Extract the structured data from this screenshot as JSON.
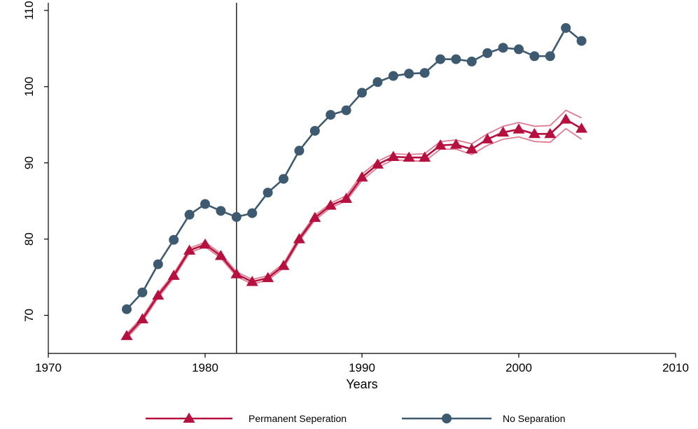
{
  "chart_data": {
    "type": "line",
    "title": "",
    "xlabel": "Years",
    "ylabel": "",
    "xlim": [
      1970,
      2010
    ],
    "ylim": [
      65,
      111
    ],
    "x_ticks": [
      1970,
      1980,
      1990,
      2000,
      2010
    ],
    "y_ticks": [
      70,
      80,
      90,
      100,
      110
    ],
    "grid": false,
    "legend_position": "bottom",
    "vertical_line_x": 1982,
    "x": [
      1975,
      1976,
      1977,
      1978,
      1979,
      1980,
      1981,
      1982,
      1983,
      1984,
      1985,
      1986,
      1987,
      1988,
      1989,
      1990,
      1991,
      1992,
      1993,
      1994,
      1995,
      1996,
      1997,
      1998,
      1999,
      2000,
      2001,
      2002,
      2003,
      2004
    ],
    "series": [
      {
        "name": "Permanent Seperation",
        "marker": "triangle",
        "color": "#b5103f",
        "band_color": "#e07a90",
        "values": [
          67.3,
          69.5,
          72.6,
          75.2,
          78.5,
          79.3,
          77.8,
          75.4,
          74.4,
          74.9,
          76.5,
          80.0,
          82.8,
          84.4,
          85.3,
          88.1,
          89.8,
          90.8,
          90.7,
          90.7,
          92.3,
          92.4,
          91.8,
          93.1,
          94.0,
          94.4,
          93.8,
          93.8,
          95.7,
          94.5
        ],
        "lower": [
          67.0,
          69.2,
          72.3,
          74.9,
          78.2,
          79.0,
          77.5,
          75.1,
          74.1,
          74.6,
          76.2,
          79.7,
          82.5,
          84.1,
          85.0,
          87.7,
          89.4,
          90.4,
          90.3,
          90.2,
          91.8,
          91.8,
          91.1,
          92.3,
          93.1,
          93.4,
          92.8,
          92.7,
          94.5,
          93.1
        ],
        "upper": [
          67.6,
          69.8,
          72.9,
          75.5,
          78.8,
          79.6,
          78.1,
          75.7,
          74.7,
          75.2,
          76.8,
          80.3,
          83.1,
          84.7,
          85.7,
          88.5,
          90.2,
          91.2,
          91.1,
          91.2,
          92.8,
          93.0,
          92.5,
          93.8,
          94.8,
          95.3,
          94.8,
          94.9,
          96.9,
          95.9
        ]
      },
      {
        "name": "No Separation",
        "marker": "circle",
        "color": "#3e5a70",
        "values": [
          70.8,
          73.0,
          76.7,
          79.9,
          83.2,
          84.6,
          83.7,
          82.9,
          83.4,
          86.1,
          87.9,
          91.6,
          94.2,
          96.3,
          96.9,
          99.2,
          100.6,
          101.4,
          101.7,
          101.8,
          103.6,
          103.6,
          103.3,
          104.4,
          105.1,
          104.9,
          104.0,
          104.0,
          107.7,
          106.0
        ]
      }
    ]
  }
}
